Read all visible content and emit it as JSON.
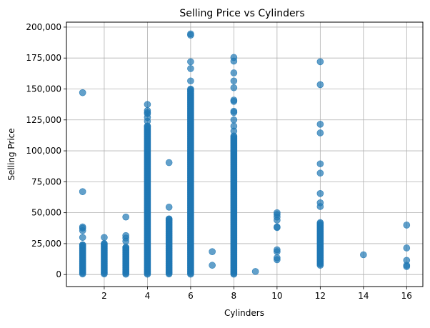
{
  "chart_data": {
    "type": "scatter",
    "title": "Selling Price vs Cylinders",
    "xlabel": "Cylinders",
    "ylabel": "Selling Price",
    "xlim": [
      0.25,
      16.75
    ],
    "ylim": [
      -9700,
      204000
    ],
    "xticks": [
      2,
      4,
      6,
      8,
      10,
      12,
      14,
      16
    ],
    "yticks": [
      0,
      25000,
      50000,
      75000,
      100000,
      125000,
      150000,
      175000,
      200000
    ],
    "ytick_labels": [
      "0",
      "25,000",
      "50,000",
      "75,000",
      "100,000",
      "125,000",
      "150,000",
      "175,000",
      "200,000"
    ],
    "grid": true,
    "marker_color": "#1f77b4",
    "marker_alpha": 0.7,
    "columns": [
      {
        "x": 1,
        "range": [
          500,
          24000
        ],
        "extra": [
          30000,
          35500,
          37500,
          38500,
          67000,
          147000
        ]
      },
      {
        "x": 2,
        "range": [
          500,
          25000
        ],
        "extra": [
          30000
        ]
      },
      {
        "x": 3,
        "range": [
          300,
          22000
        ],
        "extra": [
          27000,
          29500,
          31500,
          46500
        ]
      },
      {
        "x": 4,
        "range": [
          300,
          120000
        ],
        "extra": [
          124000,
          127000,
          130000,
          131000,
          132500,
          137500
        ]
      },
      {
        "x": 5,
        "range": [
          500,
          45000
        ],
        "extra": [
          54500,
          90500
        ]
      },
      {
        "x": 6,
        "range": [
          300,
          150000
        ],
        "extra": [
          156500,
          166500,
          172000,
          193500,
          194500
        ]
      },
      {
        "x": 7,
        "range": null,
        "extra": [
          7500,
          18500
        ]
      },
      {
        "x": 8,
        "range": [
          300,
          112000
        ],
        "extra": [
          116000,
          120000,
          125000,
          131000,
          132000,
          140000,
          141000,
          151000,
          156500,
          163000,
          172500,
          175500
        ]
      },
      {
        "x": 9,
        "range": null,
        "extra": [
          2500
        ]
      },
      {
        "x": 10,
        "range": null,
        "extra": [
          12000,
          13500,
          18500,
          20000,
          38000,
          38500,
          44000,
          46500,
          48500,
          50000
        ]
      },
      {
        "x": 12,
        "range": [
          7500,
          42000
        ],
        "extra": [
          55000,
          58000,
          65500,
          82000,
          89500,
          114500,
          121500,
          153500,
          172000
        ]
      },
      {
        "x": 14,
        "range": null,
        "extra": [
          16000
        ]
      },
      {
        "x": 16,
        "range": null,
        "extra": [
          6500,
          7500,
          11500,
          21500,
          40000
        ]
      }
    ]
  }
}
